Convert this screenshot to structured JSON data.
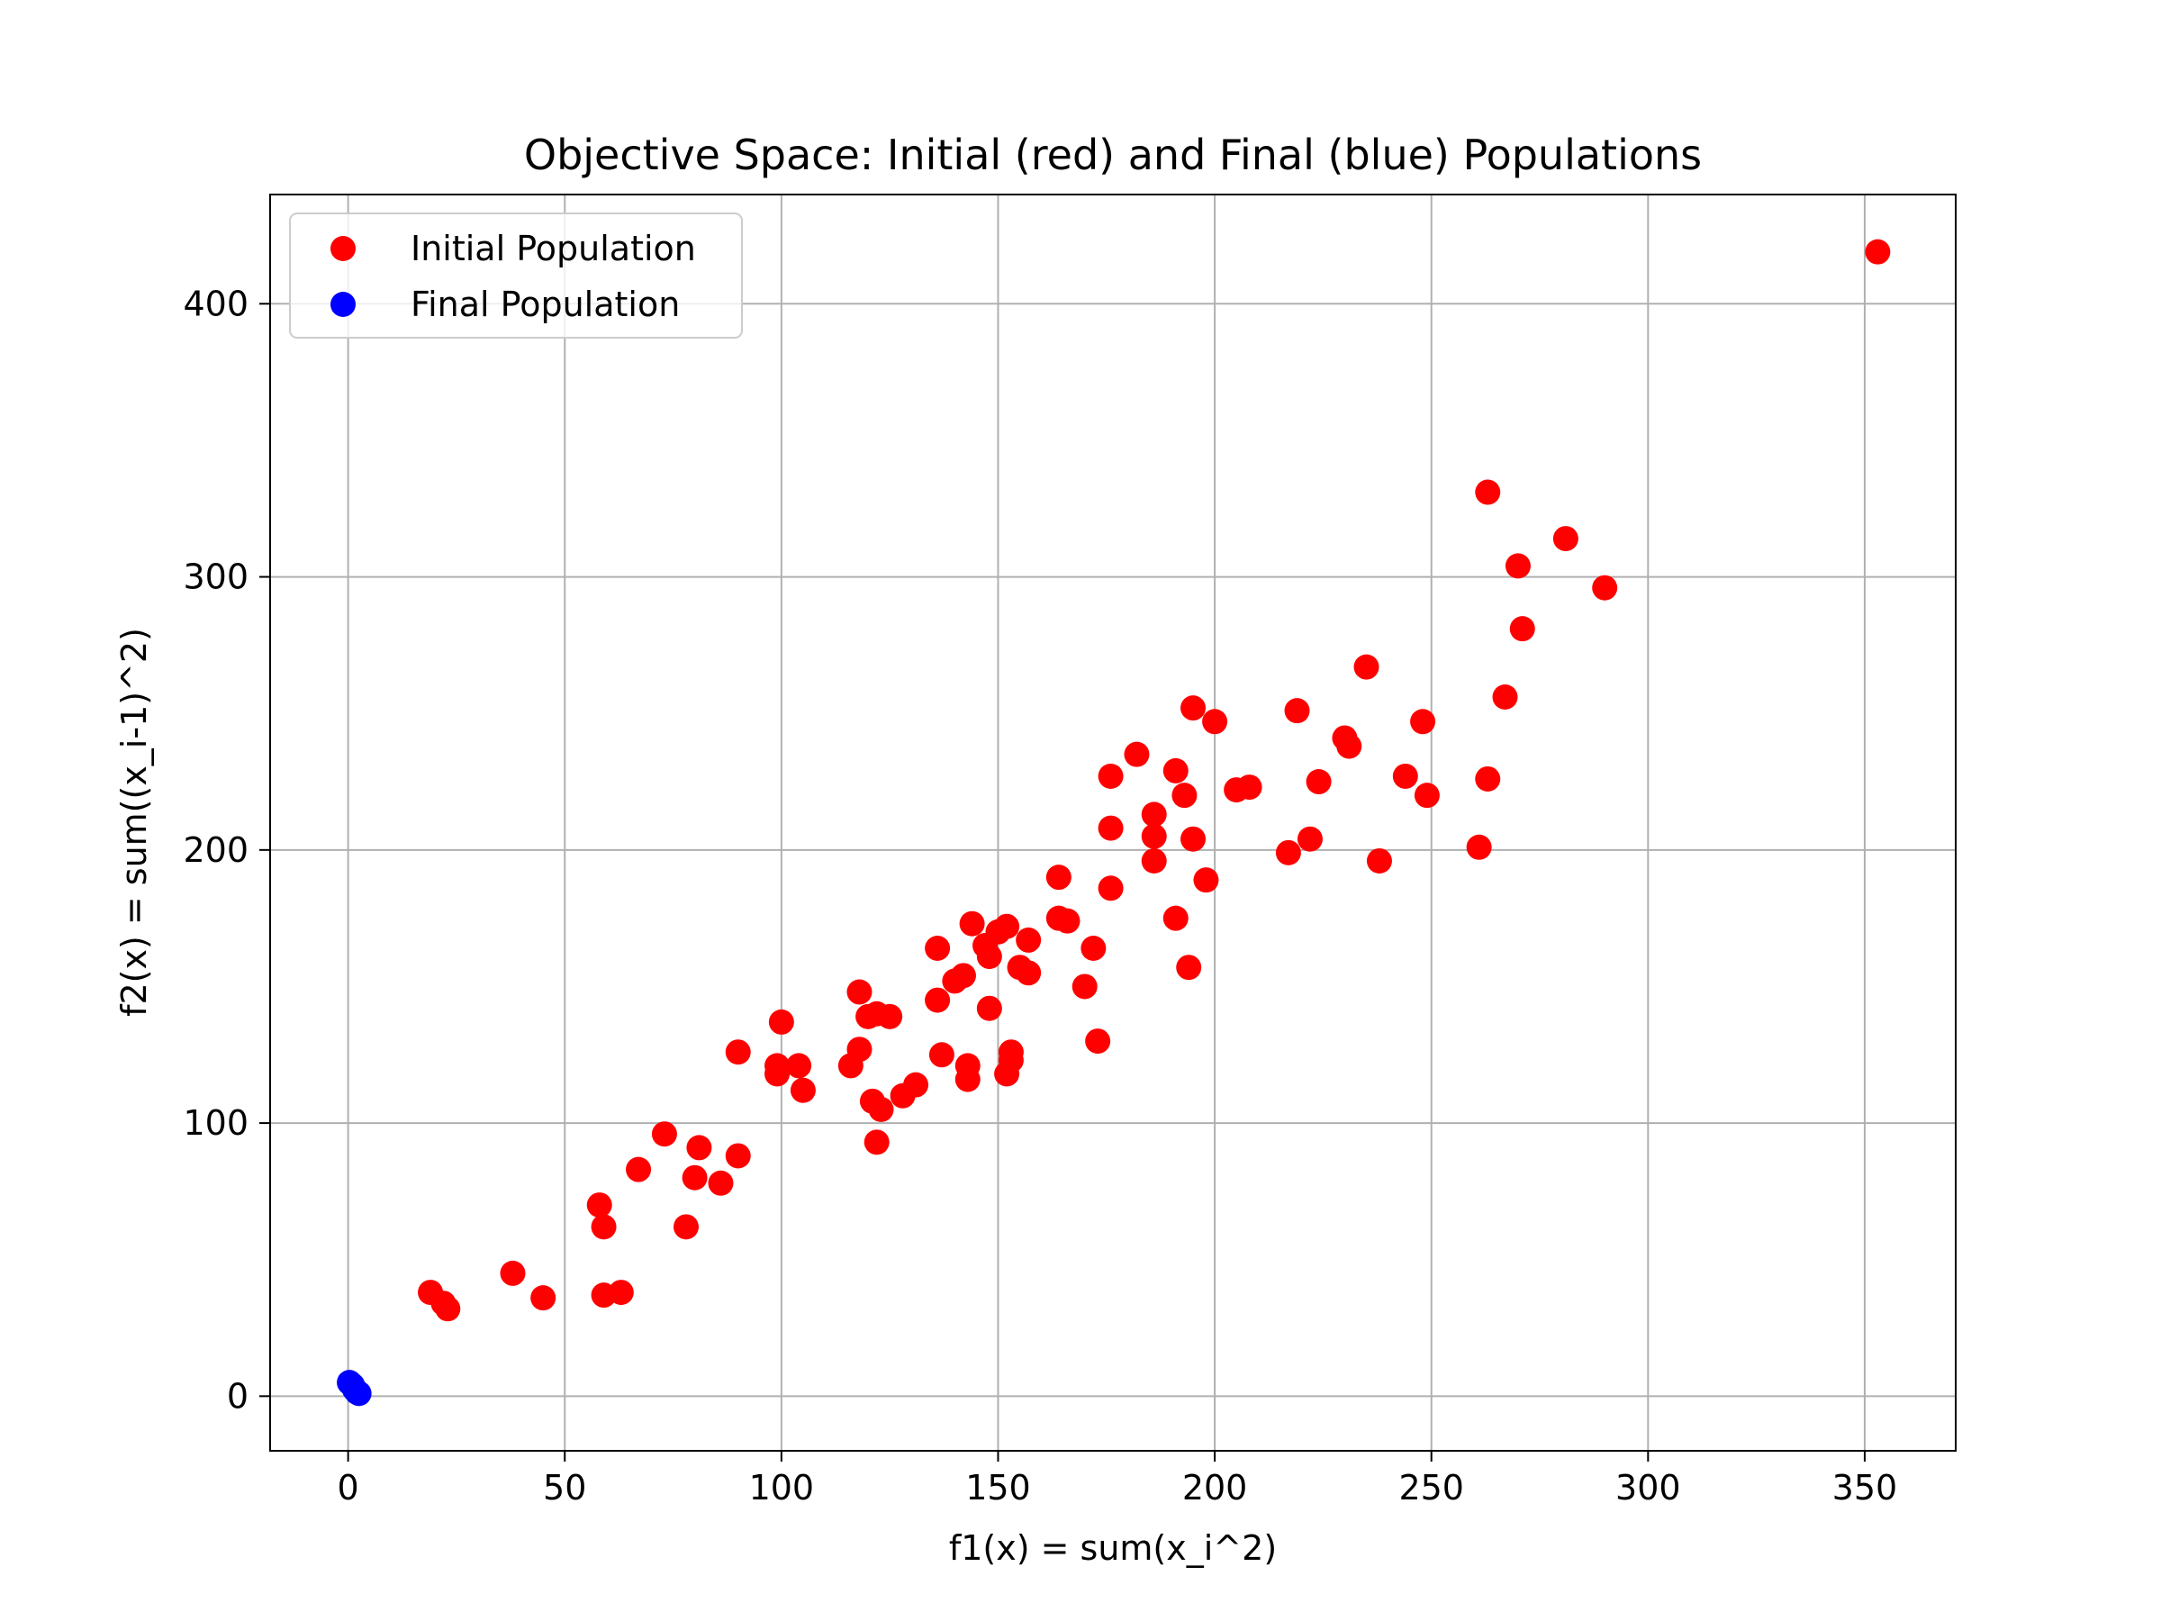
{
  "chart_data": {
    "type": "scatter",
    "title": "Objective Space: Initial (red) and Final (blue) Populations",
    "xlabel": "f1(x) = sum(x_i^2)",
    "ylabel": "f2(x) = sum((x_i-1)^2)",
    "xlim": [
      -18,
      371
    ],
    "ylim": [
      -20,
      440
    ],
    "xticks": [
      0,
      50,
      100,
      150,
      200,
      250,
      300,
      350
    ],
    "yticks": [
      0,
      100,
      200,
      300,
      400
    ],
    "grid": true,
    "legend_position": "top-left",
    "series": [
      {
        "name": "Initial Population",
        "color": "#ff0000",
        "points": [
          [
            353,
            419
          ],
          [
            263,
            331
          ],
          [
            281,
            314
          ],
          [
            270,
            304
          ],
          [
            290,
            296
          ],
          [
            271,
            281
          ],
          [
            235,
            267
          ],
          [
            267,
            256
          ],
          [
            195,
            252
          ],
          [
            219,
            251
          ],
          [
            200,
            247
          ],
          [
            248,
            247
          ],
          [
            230,
            241
          ],
          [
            231,
            238
          ],
          [
            182,
            235
          ],
          [
            191,
            229
          ],
          [
            176,
            227
          ],
          [
            244,
            227
          ],
          [
            263,
            226
          ],
          [
            224,
            225
          ],
          [
            208,
            223
          ],
          [
            205,
            222
          ],
          [
            193,
            220
          ],
          [
            249,
            220
          ],
          [
            186,
            213
          ],
          [
            176,
            208
          ],
          [
            186,
            205
          ],
          [
            195,
            204
          ],
          [
            222,
            204
          ],
          [
            261,
            201
          ],
          [
            217,
            199
          ],
          [
            186,
            196
          ],
          [
            238,
            196
          ],
          [
            164,
            190
          ],
          [
            198,
            189
          ],
          [
            176,
            186
          ],
          [
            164,
            175
          ],
          [
            166,
            174
          ],
          [
            191,
            175
          ],
          [
            144,
            173
          ],
          [
            152,
            172
          ],
          [
            150,
            170
          ],
          [
            147,
            165
          ],
          [
            157,
            167
          ],
          [
            136,
            164
          ],
          [
            172,
            164
          ],
          [
            148,
            161
          ],
          [
            155,
            157
          ],
          [
            194,
            157
          ],
          [
            157,
            155
          ],
          [
            142,
            154
          ],
          [
            140,
            152
          ],
          [
            170,
            150
          ],
          [
            118,
            148
          ],
          [
            136,
            145
          ],
          [
            148,
            142
          ],
          [
            122,
            140
          ],
          [
            120,
            139
          ],
          [
            125,
            139
          ],
          [
            100,
            137
          ],
          [
            173,
            130
          ],
          [
            90,
            126
          ],
          [
            118,
            127
          ],
          [
            137,
            125
          ],
          [
            153,
            126
          ],
          [
            153,
            123
          ],
          [
            116,
            121
          ],
          [
            143,
            121
          ],
          [
            99,
            121
          ],
          [
            104,
            121
          ],
          [
            99,
            118
          ],
          [
            143,
            116
          ],
          [
            152,
            118
          ],
          [
            105,
            112
          ],
          [
            131,
            114
          ],
          [
            128,
            110
          ],
          [
            121,
            108
          ],
          [
            123,
            105
          ],
          [
            122,
            93
          ],
          [
            73,
            96
          ],
          [
            81,
            91
          ],
          [
            90,
            88
          ],
          [
            67,
            83
          ],
          [
            80,
            80
          ],
          [
            86,
            78
          ],
          [
            58,
            70
          ],
          [
            59,
            62
          ],
          [
            78,
            62
          ],
          [
            38,
            45
          ],
          [
            19,
            38
          ],
          [
            22,
            34
          ],
          [
            23,
            32
          ],
          [
            45,
            36
          ],
          [
            59,
            37
          ],
          [
            63,
            38
          ]
        ]
      },
      {
        "name": "Final Population",
        "color": "#0000ff",
        "points": [
          [
            0.3,
            5
          ],
          [
            1,
            4
          ],
          [
            1.5,
            2.5
          ],
          [
            2,
            1.5
          ],
          [
            2.5,
            1
          ]
        ]
      }
    ]
  }
}
